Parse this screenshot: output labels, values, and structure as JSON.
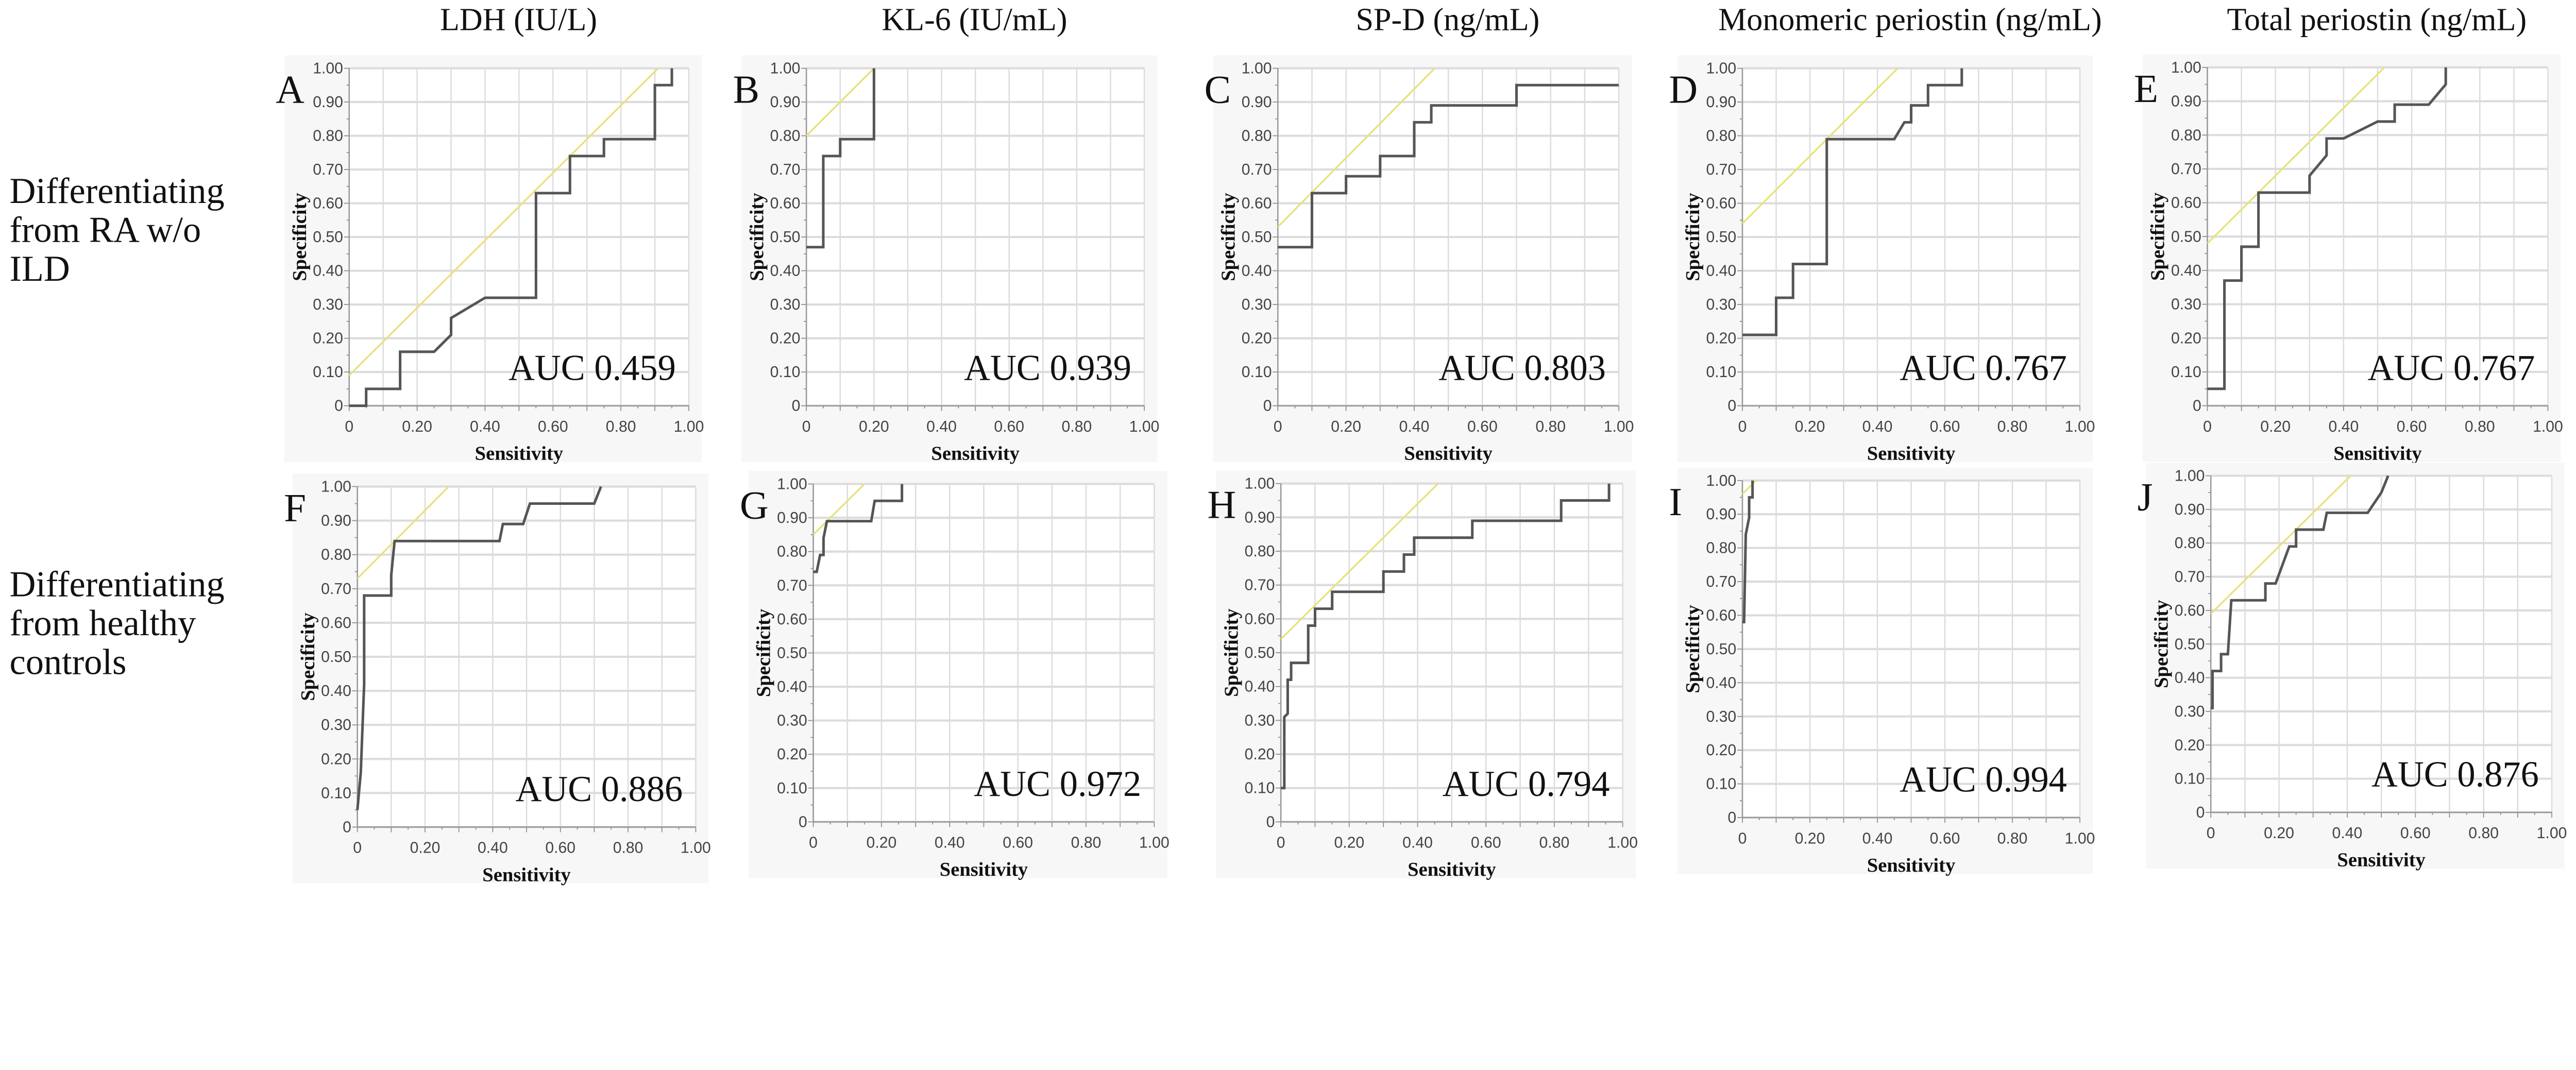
{
  "column_titles": [
    "LDH (IU/L)",
    "KL-6 (IU/mL)",
    "SP-D (ng/mL)",
    "Monomeric periostin (ng/mL)",
    "Total periostin (ng/mL)"
  ],
  "row_labels": [
    [
      "Differentiating",
      "from RA w/o",
      "ILD"
    ],
    [
      "Differentiating",
      "from healthy",
      "controls"
    ]
  ],
  "colors": {
    "roc_curve": "#555555",
    "reference_line": "#e8e27a",
    "grid": "#dcdcdc",
    "panel_bg": "#f7f7f7"
  },
  "chart_data": [
    {
      "type": "line",
      "panel": "A",
      "column": "LDH (IU/L)",
      "auc_label": "AUC 0.459",
      "xlabel": "Sensitivity",
      "ylabel": "Specificity",
      "xlim": [
        0,
        1
      ],
      "ylim": [
        0,
        1
      ],
      "grid": true,
      "xticks": [
        "0",
        "0.20",
        "0.40",
        "0.60",
        "0.80",
        "1.00"
      ],
      "yticks": [
        "0",
        "0.10",
        "0.20",
        "0.30",
        "0.40",
        "0.50",
        "0.60",
        "0.70",
        "0.80",
        "0.90",
        "1.00"
      ],
      "roc": [
        [
          0,
          0
        ],
        [
          0.05,
          0
        ],
        [
          0.05,
          0.05
        ],
        [
          0.15,
          0.05
        ],
        [
          0.15,
          0.16
        ],
        [
          0.25,
          0.16
        ],
        [
          0.3,
          0.21
        ],
        [
          0.3,
          0.26
        ],
        [
          0.4,
          0.32
        ],
        [
          0.55,
          0.32
        ],
        [
          0.55,
          0.63
        ],
        [
          0.65,
          0.63
        ],
        [
          0.65,
          0.74
        ],
        [
          0.75,
          0.74
        ],
        [
          0.75,
          0.79
        ],
        [
          0.9,
          0.79
        ],
        [
          0.9,
          0.95
        ],
        [
          0.95,
          0.95
        ],
        [
          0.95,
          1.0
        ]
      ],
      "reference_line": [
        [
          0,
          0.09
        ],
        [
          0.91,
          1.0
        ]
      ]
    },
    {
      "type": "line",
      "panel": "B",
      "column": "KL-6 (IU/mL)",
      "auc_label": "AUC 0.939",
      "xlabel": "Sensitivity",
      "ylabel": "Specificity",
      "xlim": [
        0,
        1
      ],
      "ylim": [
        0,
        1
      ],
      "grid": true,
      "xticks": [
        "0",
        "0.20",
        "0.40",
        "0.60",
        "0.80",
        "1.00"
      ],
      "yticks": [
        "0",
        "0.10",
        "0.20",
        "0.30",
        "0.40",
        "0.50",
        "0.60",
        "0.70",
        "0.80",
        "0.90",
        "1.00"
      ],
      "roc": [
        [
          0,
          0.47
        ],
        [
          0.05,
          0.47
        ],
        [
          0.05,
          0.74
        ],
        [
          0.1,
          0.74
        ],
        [
          0.1,
          0.79
        ],
        [
          0.2,
          0.79
        ],
        [
          0.2,
          1.0
        ]
      ],
      "reference_line": [
        [
          0,
          0.8
        ],
        [
          0.2,
          1.0
        ]
      ]
    },
    {
      "type": "line",
      "panel": "C",
      "column": "SP-D (ng/mL)",
      "auc_label": "AUC 0.803",
      "xlabel": "Sensitivity",
      "ylabel": "Specificity",
      "xlim": [
        0,
        1
      ],
      "ylim": [
        0,
        1
      ],
      "grid": true,
      "xticks": [
        "0",
        "0.20",
        "0.40",
        "0.60",
        "0.80",
        "1.00"
      ],
      "yticks": [
        "0",
        "0.10",
        "0.20",
        "0.30",
        "0.40",
        "0.50",
        "0.60",
        "0.70",
        "0.80",
        "0.90",
        "1.00"
      ],
      "roc": [
        [
          0,
          0.47
        ],
        [
          0.1,
          0.47
        ],
        [
          0.1,
          0.63
        ],
        [
          0.2,
          0.63
        ],
        [
          0.2,
          0.68
        ],
        [
          0.3,
          0.68
        ],
        [
          0.3,
          0.74
        ],
        [
          0.4,
          0.74
        ],
        [
          0.4,
          0.84
        ],
        [
          0.45,
          0.84
        ],
        [
          0.45,
          0.89
        ],
        [
          0.7,
          0.89
        ],
        [
          0.7,
          0.95
        ],
        [
          1.0,
          0.95
        ]
      ],
      "reference_line": [
        [
          0,
          0.53
        ],
        [
          0.46,
          1.0
        ]
      ]
    },
    {
      "type": "line",
      "panel": "D",
      "column": "Monomeric periostin (ng/mL)",
      "auc_label": "AUC 0.767",
      "xlabel": "Sensitivity",
      "ylabel": "Specificity",
      "xlim": [
        0,
        1
      ],
      "ylim": [
        0,
        1
      ],
      "grid": true,
      "xticks": [
        "0",
        "0.20",
        "0.40",
        "0.60",
        "0.80",
        "1.00"
      ],
      "yticks": [
        "0",
        "0.10",
        "0.20",
        "0.30",
        "0.40",
        "0.50",
        "0.60",
        "0.70",
        "0.80",
        "0.90",
        "1.00"
      ],
      "roc": [
        [
          0,
          0.21
        ],
        [
          0.1,
          0.21
        ],
        [
          0.1,
          0.32
        ],
        [
          0.15,
          0.32
        ],
        [
          0.15,
          0.42
        ],
        [
          0.25,
          0.42
        ],
        [
          0.25,
          0.79
        ],
        [
          0.45,
          0.79
        ],
        [
          0.48,
          0.84
        ],
        [
          0.5,
          0.84
        ],
        [
          0.5,
          0.89
        ],
        [
          0.55,
          0.89
        ],
        [
          0.55,
          0.95
        ],
        [
          0.65,
          0.95
        ],
        [
          0.65,
          1.0
        ]
      ],
      "reference_line": [
        [
          0,
          0.54
        ],
        [
          0.46,
          1.0
        ]
      ]
    },
    {
      "type": "line",
      "panel": "E",
      "column": "Total periostin (ng/mL)",
      "auc_label": "AUC 0.767",
      "xlabel": "Sensitivity",
      "ylabel": "Specificity",
      "xlim": [
        0,
        1
      ],
      "ylim": [
        0,
        1
      ],
      "grid": true,
      "xticks": [
        "0",
        "0.20",
        "0.40",
        "0.60",
        "0.80",
        "1.00"
      ],
      "yticks": [
        "0",
        "0.10",
        "0.20",
        "0.30",
        "0.40",
        "0.50",
        "0.60",
        "0.70",
        "0.80",
        "0.90",
        "1.00"
      ],
      "roc": [
        [
          0,
          0.05
        ],
        [
          0.05,
          0.05
        ],
        [
          0.05,
          0.37
        ],
        [
          0.1,
          0.37
        ],
        [
          0.1,
          0.47
        ],
        [
          0.15,
          0.47
        ],
        [
          0.15,
          0.63
        ],
        [
          0.3,
          0.63
        ],
        [
          0.3,
          0.68
        ],
        [
          0.35,
          0.74
        ],
        [
          0.35,
          0.79
        ],
        [
          0.4,
          0.79
        ],
        [
          0.5,
          0.84
        ],
        [
          0.55,
          0.84
        ],
        [
          0.55,
          0.89
        ],
        [
          0.65,
          0.89
        ],
        [
          0.7,
          0.95
        ],
        [
          0.7,
          1.0
        ]
      ],
      "reference_line": [
        [
          0,
          0.48
        ],
        [
          0.52,
          1.0
        ]
      ]
    },
    {
      "type": "line",
      "panel": "F",
      "column": "LDH (IU/L)",
      "auc_label": "AUC 0.886",
      "xlabel": "Sensitivity",
      "ylabel": "Specificity",
      "xlim": [
        0,
        1
      ],
      "ylim": [
        0,
        1
      ],
      "grid": true,
      "xticks": [
        "0",
        "0.20",
        "0.40",
        "0.60",
        "0.80",
        "1.00"
      ],
      "yticks": [
        "0",
        "0.10",
        "0.20",
        "0.30",
        "0.40",
        "0.50",
        "0.60",
        "0.70",
        "0.80",
        "0.90",
        "1.00"
      ],
      "roc": [
        [
          0,
          0.05
        ],
        [
          0.01,
          0.16
        ],
        [
          0.02,
          0.42
        ],
        [
          0.02,
          0.68
        ],
        [
          0.1,
          0.68
        ],
        [
          0.1,
          0.74
        ],
        [
          0.11,
          0.84
        ],
        [
          0.42,
          0.84
        ],
        [
          0.43,
          0.89
        ],
        [
          0.49,
          0.89
        ],
        [
          0.51,
          0.95
        ],
        [
          0.7,
          0.95
        ],
        [
          0.72,
          1.0
        ]
      ],
      "reference_line": [
        [
          0,
          0.73
        ],
        [
          0.27,
          1.0
        ]
      ]
    },
    {
      "type": "line",
      "panel": "G",
      "column": "KL-6 (IU/mL)",
      "auc_label": "AUC 0.972",
      "xlabel": "Sensitivity",
      "ylabel": "Specificity",
      "xlim": [
        0,
        1
      ],
      "ylim": [
        0,
        1
      ],
      "grid": true,
      "xticks": [
        "0",
        "0.20",
        "0.40",
        "0.60",
        "0.80",
        "1.00"
      ],
      "yticks": [
        "0",
        "0.10",
        "0.20",
        "0.30",
        "0.40",
        "0.50",
        "0.60",
        "0.70",
        "0.80",
        "0.90",
        "1.00"
      ],
      "roc": [
        [
          0,
          0.74
        ],
        [
          0.01,
          0.74
        ],
        [
          0.02,
          0.79
        ],
        [
          0.03,
          0.79
        ],
        [
          0.03,
          0.84
        ],
        [
          0.04,
          0.89
        ],
        [
          0.17,
          0.89
        ],
        [
          0.18,
          0.95
        ],
        [
          0.26,
          0.95
        ],
        [
          0.26,
          1.0
        ]
      ],
      "reference_line": [
        [
          0,
          0.85
        ],
        [
          0.15,
          1.0
        ]
      ]
    },
    {
      "type": "line",
      "panel": "H",
      "column": "SP-D (ng/mL)",
      "auc_label": "AUC 0.794",
      "xlabel": "Sensitivity",
      "ylabel": "Specificity",
      "xlim": [
        0,
        1
      ],
      "ylim": [
        0,
        1
      ],
      "grid": true,
      "xticks": [
        "0",
        "0.20",
        "0.40",
        "0.60",
        "0.80",
        "1.00"
      ],
      "yticks": [
        "0",
        "0.10",
        "0.20",
        "0.30",
        "0.40",
        "0.50",
        "0.60",
        "0.70",
        "0.80",
        "0.90",
        "1.00"
      ],
      "roc": [
        [
          0,
          0.1
        ],
        [
          0.01,
          0.1
        ],
        [
          0.01,
          0.31
        ],
        [
          0.02,
          0.32
        ],
        [
          0.02,
          0.42
        ],
        [
          0.03,
          0.42
        ],
        [
          0.03,
          0.47
        ],
        [
          0.08,
          0.47
        ],
        [
          0.08,
          0.58
        ],
        [
          0.1,
          0.58
        ],
        [
          0.1,
          0.63
        ],
        [
          0.15,
          0.63
        ],
        [
          0.15,
          0.68
        ],
        [
          0.3,
          0.68
        ],
        [
          0.3,
          0.74
        ],
        [
          0.36,
          0.74
        ],
        [
          0.36,
          0.79
        ],
        [
          0.39,
          0.79
        ],
        [
          0.39,
          0.84
        ],
        [
          0.56,
          0.84
        ],
        [
          0.56,
          0.89
        ],
        [
          0.82,
          0.89
        ],
        [
          0.82,
          0.95
        ],
        [
          0.96,
          0.95
        ],
        [
          0.96,
          1.0
        ]
      ],
      "reference_line": [
        [
          0,
          0.54
        ],
        [
          0.46,
          1.0
        ]
      ]
    },
    {
      "type": "line",
      "panel": "I",
      "column": "Monomeric periostin (ng/mL)",
      "auc_label": "AUC 0.994",
      "xlabel": "Sensitivity",
      "ylabel": "Specificity",
      "xlim": [
        0,
        1
      ],
      "ylim": [
        0,
        1
      ],
      "grid": true,
      "xticks": [
        "0",
        "0.20",
        "0.40",
        "0.60",
        "0.80",
        "1.00"
      ],
      "yticks": [
        "0",
        "0.10",
        "0.20",
        "0.30",
        "0.40",
        "0.50",
        "0.60",
        "0.70",
        "0.80",
        "0.90",
        "1.00"
      ],
      "roc": [
        [
          0,
          0.58
        ],
        [
          0.005,
          0.58
        ],
        [
          0.01,
          0.84
        ],
        [
          0.02,
          0.89
        ],
        [
          0.02,
          0.95
        ],
        [
          0.03,
          0.95
        ],
        [
          0.03,
          1.0
        ]
      ],
      "reference_line": [
        [
          0,
          0.96
        ],
        [
          0.04,
          1.0
        ]
      ]
    },
    {
      "type": "line",
      "panel": "J",
      "column": "Total periostin (ng/mL)",
      "auc_label": "AUC 0.876",
      "xlabel": "Sensitivity",
      "ylabel": "Specificity",
      "xlim": [
        0,
        1
      ],
      "ylim": [
        0,
        1
      ],
      "grid": true,
      "xticks": [
        "0",
        "0.20",
        "0.40",
        "0.60",
        "0.80",
        "1.00"
      ],
      "yticks": [
        "0",
        "0.10",
        "0.20",
        "0.30",
        "0.40",
        "0.50",
        "0.60",
        "0.70",
        "0.80",
        "0.90",
        "1.00"
      ],
      "roc": [
        [
          0,
          0.31
        ],
        [
          0.005,
          0.31
        ],
        [
          0.005,
          0.42
        ],
        [
          0.03,
          0.42
        ],
        [
          0.03,
          0.47
        ],
        [
          0.05,
          0.47
        ],
        [
          0.06,
          0.63
        ],
        [
          0.16,
          0.63
        ],
        [
          0.16,
          0.68
        ],
        [
          0.19,
          0.68
        ],
        [
          0.23,
          0.79
        ],
        [
          0.25,
          0.79
        ],
        [
          0.25,
          0.84
        ],
        [
          0.33,
          0.84
        ],
        [
          0.34,
          0.89
        ],
        [
          0.46,
          0.89
        ],
        [
          0.5,
          0.95
        ],
        [
          0.52,
          1.0
        ]
      ],
      "reference_line": [
        [
          0,
          0.59
        ],
        [
          0.41,
          1.0
        ]
      ]
    }
  ]
}
